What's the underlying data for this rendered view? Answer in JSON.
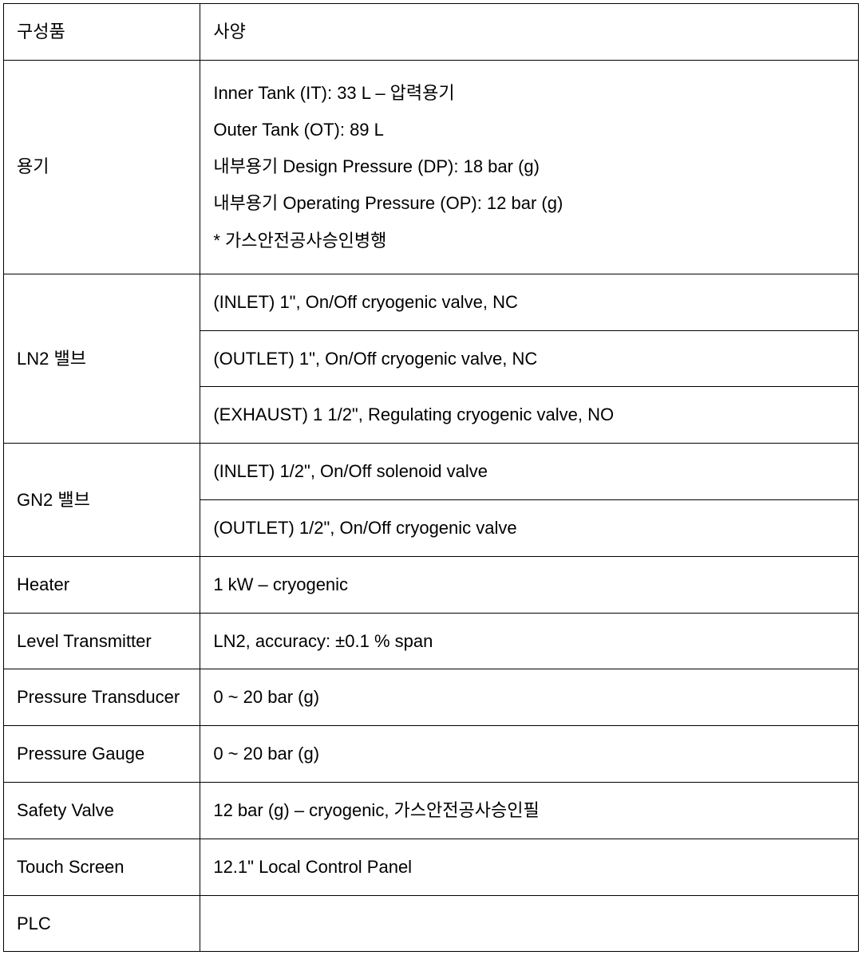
{
  "table": {
    "type": "table",
    "background_color": "#ffffff",
    "border_color": "#000000",
    "border_width": 1.5,
    "text_color": "#000000",
    "font_size": 22,
    "column_widths": [
      "23%",
      "77%"
    ],
    "header": {
      "component": "구성품",
      "spec": "사양"
    },
    "rows": [
      {
        "component": "용기",
        "spec_lines": [
          "Inner Tank (IT): 33 L – 압력용기",
          "Outer Tank (OT): 89 L",
          "내부용기 Design Pressure (DP): 18 bar (g)",
          "내부용기 Operating Pressure (OP): 12 bar (g)",
          "* 가스안전공사승인병행"
        ],
        "rowspan_component": 1,
        "multiline": true
      },
      {
        "component": "LN2 밸브",
        "spec_cells": [
          "(INLET) 1\", On/Off cryogenic valve, NC",
          "(OUTLET) 1\", On/Off cryogenic valve, NC",
          "(EXHAUST) 1 1/2\", Regulating cryogenic valve, NO"
        ],
        "rowspan_component": 3
      },
      {
        "component": "GN2 밸브",
        "spec_cells": [
          "(INLET) 1/2\", On/Off solenoid valve",
          "(OUTLET) 1/2\", On/Off cryogenic valve"
        ],
        "rowspan_component": 2
      },
      {
        "component": "Heater",
        "spec": "1 kW – cryogenic"
      },
      {
        "component": "Level Transmitter",
        "spec": "LN2, accuracy: ±0.1 % span"
      },
      {
        "component": "Pressure Transducer",
        "spec": "0 ~ 20 bar (g)"
      },
      {
        "component": "Pressure Gauge",
        "spec": "0 ~ 20 bar (g)"
      },
      {
        "component": "Safety Valve",
        "spec": "12 bar (g) – cryogenic, 가스안전공사승인필"
      },
      {
        "component": "Touch Screen",
        "spec": "12.1\" Local Control Panel"
      },
      {
        "component": "PLC",
        "spec": ""
      }
    ]
  }
}
